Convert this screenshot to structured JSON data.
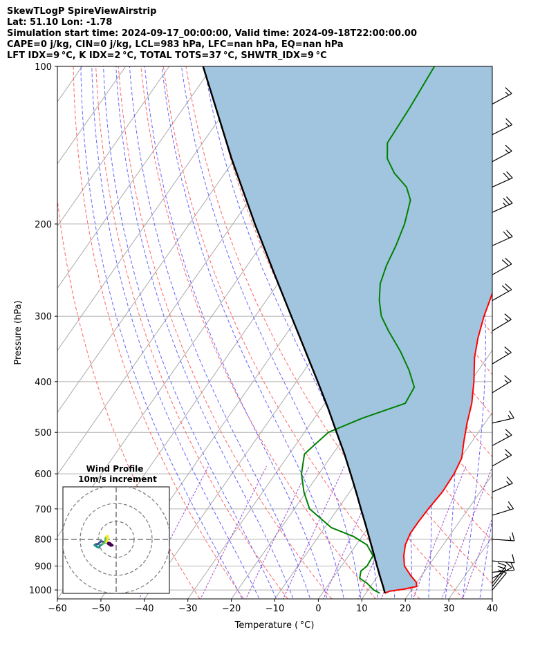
{
  "header": {
    "line1": "SkewTLogP SpireViewAirstrip",
    "line2": "Lat: 51.10   Lon: -1.78",
    "line3": "Simulation start time: 2024-09-17_00:00:00, Valid time: 2024-09-18T22:00:00.00",
    "line4": "CAPE=0 j/kg, CIN=0 j/kg, LCL=983 hPa, LFC=nan hPa, EQ=nan hPa",
    "line5": "LFT IDX=9 °C, K IDX=2 °C, TOTAL TOTS=37 °C, SHWTR_IDX=9 °C"
  },
  "colors": {
    "temperature": "#ff0000",
    "dewpoint": "#008000",
    "parcel": "#000000",
    "shade": "#a1c5df",
    "dry_adiabat": "#ff6464",
    "moist_adiabat": "#6464ff",
    "mixing_ratio": "#9b4dca",
    "isotherm": "#aaaaaa"
  },
  "chart_data": {
    "type": "skewt",
    "xlabel": "Temperature ( °C)",
    "ylabel": "Pressure (hPa)",
    "xlim": [
      -60,
      40
    ],
    "ylim": [
      1040,
      100
    ],
    "x_ticks": [
      "−60",
      "−50",
      "−40",
      "−30",
      "−20",
      "−10",
      "0",
      "10",
      "20",
      "30",
      "40"
    ],
    "y_ticks": [
      "100",
      "200",
      "300",
      "400",
      "500",
      "600",
      "700",
      "800",
      "900",
      "1000"
    ],
    "y_tick_values": [
      100,
      200,
      300,
      400,
      500,
      600,
      700,
      800,
      900,
      1000
    ],
    "grid": true,
    "temperature_profile": [
      [
        1014,
        14.4
      ],
      [
        1005,
        15.2
      ],
      [
        997,
        17.9
      ],
      [
        985,
        20.6
      ],
      [
        967,
        19.9
      ],
      [
        940,
        17.6
      ],
      [
        900,
        14.5
      ],
      [
        860,
        12.7
      ],
      [
        820,
        11.3
      ],
      [
        780,
        10.6
      ],
      [
        740,
        10.6
      ],
      [
        700,
        10.8
      ],
      [
        650,
        11.3
      ],
      [
        600,
        11.1
      ],
      [
        560,
        10.3
      ],
      [
        520,
        8.1
      ],
      [
        480,
        5.9
      ],
      [
        440,
        3.8
      ],
      [
        400,
        0.8
      ],
      [
        360,
        -2.9
      ],
      [
        330,
        -5.3
      ],
      [
        300,
        -7.4
      ],
      [
        280,
        -8.6
      ],
      [
        260,
        -9.9
      ],
      [
        240,
        -11.9
      ],
      [
        220,
        -14.1
      ],
      [
        200,
        -16.5
      ],
      [
        180,
        -19.2
      ],
      [
        165,
        -21.0
      ],
      [
        150,
        -22.2
      ],
      [
        140,
        -22.9
      ],
      [
        130,
        -24.2
      ],
      [
        120,
        -25.2
      ],
      [
        110,
        -27.6
      ],
      [
        100,
        -30.5
      ]
    ],
    "dewpoint_profile": [
      [
        1014,
        13.2
      ],
      [
        1000,
        11.3
      ],
      [
        970,
        8.6
      ],
      [
        950,
        6.2
      ],
      [
        920,
        5.3
      ],
      [
        900,
        5.9
      ],
      [
        860,
        5.6
      ],
      [
        820,
        2.5
      ],
      [
        790,
        -2.0
      ],
      [
        760,
        -8.5
      ],
      [
        700,
        -16.5
      ],
      [
        650,
        -20.5
      ],
      [
        600,
        -24.0
      ],
      [
        550,
        -26.5
      ],
      [
        500,
        -24.5
      ],
      [
        470,
        -19.0
      ],
      [
        440,
        -11.5
      ],
      [
        410,
        -12.0
      ],
      [
        380,
        -16.0
      ],
      [
        350,
        -21.0
      ],
      [
        320,
        -27.0
      ],
      [
        300,
        -31.0
      ],
      [
        280,
        -34.0
      ],
      [
        260,
        -36.5
      ],
      [
        240,
        -38.0
      ],
      [
        220,
        -39.0
      ],
      [
        200,
        -40.5
      ],
      [
        180,
        -43.0
      ],
      [
        170,
        -46.0
      ],
      [
        160,
        -51.0
      ],
      [
        150,
        -55.0
      ],
      [
        140,
        -57.5
      ],
      [
        120,
        -58.0
      ],
      [
        100,
        -59.0
      ]
    ],
    "parcel_profile": [
      [
        1014,
        14.4
      ],
      [
        983,
        12.8
      ],
      [
        950,
        11.0
      ],
      [
        900,
        8.2
      ],
      [
        850,
        5.3
      ],
      [
        800,
        2.2
      ],
      [
        750,
        -1.1
      ],
      [
        700,
        -4.7
      ],
      [
        650,
        -8.5
      ],
      [
        600,
        -12.7
      ],
      [
        550,
        -17.3
      ],
      [
        500,
        -22.6
      ],
      [
        450,
        -28.4
      ],
      [
        400,
        -35.1
      ],
      [
        350,
        -42.8
      ],
      [
        300,
        -51.7
      ],
      [
        250,
        -62.2
      ],
      [
        200,
        -74.9
      ],
      [
        150,
        -90.8
      ],
      [
        100,
        -112.2
      ]
    ],
    "wind_barbs": [
      {
        "p": 1000,
        "u": 5,
        "v": 6
      },
      {
        "p": 985,
        "u": 7,
        "v": 9
      },
      {
        "p": 970,
        "u": 8,
        "v": 10
      },
      {
        "p": 950,
        "u": 9,
        "v": 5
      },
      {
        "p": 925,
        "u": 10,
        "v": 1
      },
      {
        "p": 880,
        "u": 12,
        "v": -1
      },
      {
        "p": 800,
        "u": 14,
        "v": -1
      },
      {
        "p": 720,
        "u": 13,
        "v": 4
      },
      {
        "p": 650,
        "u": 14,
        "v": 6
      },
      {
        "p": 580,
        "u": 14,
        "v": 8
      },
      {
        "p": 530,
        "u": 13,
        "v": 7
      },
      {
        "p": 480,
        "u": 13,
        "v": 3
      },
      {
        "p": 420,
        "u": 13,
        "v": 8
      },
      {
        "p": 370,
        "u": 15,
        "v": 9
      },
      {
        "p": 320,
        "u": 15,
        "v": 9
      },
      {
        "p": 280,
        "u": 16,
        "v": 9
      },
      {
        "p": 250,
        "u": 18,
        "v": 10
      },
      {
        "p": 220,
        "u": 20,
        "v": 9
      },
      {
        "p": 190,
        "u": 22,
        "v": 10
      },
      {
        "p": 170,
        "u": 20,
        "v": 9
      },
      {
        "p": 152,
        "u": 15,
        "v": 8
      },
      {
        "p": 135,
        "u": 14,
        "v": 7
      },
      {
        "p": 118,
        "u": 13,
        "v": 7
      }
    ],
    "hodograph": {
      "title_line1": "Wind Profile",
      "title_line2": "10m/s increment",
      "ring_step_ms": 10,
      "ring_count": 3,
      "points": [
        [
          -4.5,
          -2.5
        ],
        [
          -3.0,
          -3.5
        ],
        [
          -2.0,
          -3.3
        ],
        [
          -3.5,
          -2.0
        ],
        [
          -6.5,
          -1.5
        ],
        [
          -8.5,
          -1.0
        ],
        [
          -10.0,
          -2.5
        ],
        [
          -11.5,
          -2.8
        ],
        [
          -12.0,
          -3.2
        ],
        [
          -10.5,
          -4.2
        ],
        [
          -9.5,
          -4.5
        ],
        [
          -9.0,
          -3.5
        ],
        [
          -7.5,
          -2.5
        ],
        [
          -6.5,
          -2.0
        ],
        [
          -6.0,
          -1.3
        ],
        [
          -6.0,
          0.5
        ],
        [
          -5.5,
          1.5
        ],
        [
          -4.8,
          2.0
        ],
        [
          -4.5,
          1.0
        ],
        [
          -5.0,
          -0.8
        ],
        [
          -5.5,
          -1.5
        ]
      ]
    }
  }
}
